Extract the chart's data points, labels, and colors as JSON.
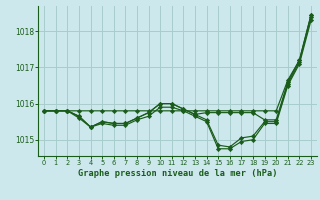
{
  "title": "Graphe pression niveau de la mer (hPa)",
  "bg_color": "#cce8ec",
  "grid_color": "#a8cccc",
  "line_color": "#1a5c1a",
  "marker_color": "#1a5c1a",
  "xlim": [
    -0.5,
    23.5
  ],
  "ylim": [
    1014.55,
    1018.7
  ],
  "yticks": [
    1015,
    1016,
    1017,
    1018
  ],
  "xticks": [
    0,
    1,
    2,
    3,
    4,
    5,
    6,
    7,
    8,
    9,
    10,
    11,
    12,
    13,
    14,
    15,
    16,
    17,
    18,
    19,
    20,
    21,
    22,
    23
  ],
  "series": [
    [
      1015.8,
      1015.8,
      1015.8,
      1015.8,
      1015.8,
      1015.8,
      1015.8,
      1015.8,
      1015.8,
      1015.8,
      1015.8,
      1015.8,
      1015.8,
      1015.8,
      1015.8,
      1015.8,
      1015.8,
      1015.8,
      1015.8,
      1015.8,
      1015.8,
      1016.65,
      1017.2,
      1018.45
    ],
    [
      1015.8,
      1015.8,
      1015.8,
      1015.65,
      1015.35,
      1015.5,
      1015.45,
      1015.45,
      1015.6,
      1015.75,
      1016.0,
      1016.0,
      1015.85,
      1015.7,
      1015.75,
      1015.75,
      1015.75,
      1015.75,
      1015.75,
      1015.55,
      1015.55,
      1016.6,
      1017.2,
      1018.45
    ],
    [
      1015.8,
      1015.8,
      1015.8,
      1015.65,
      1015.35,
      1015.5,
      1015.45,
      1015.45,
      1015.6,
      1015.75,
      1016.0,
      1016.0,
      1015.85,
      1015.7,
      1015.55,
      1014.85,
      1014.8,
      1015.05,
      1015.1,
      1015.5,
      1015.5,
      1016.55,
      1017.15,
      1018.4
    ],
    [
      1015.8,
      1015.8,
      1015.8,
      1015.6,
      1015.35,
      1015.45,
      1015.4,
      1015.4,
      1015.55,
      1015.65,
      1015.9,
      1015.9,
      1015.8,
      1015.65,
      1015.5,
      1014.75,
      1014.75,
      1014.95,
      1015.0,
      1015.45,
      1015.45,
      1016.5,
      1017.1,
      1018.3
    ]
  ]
}
